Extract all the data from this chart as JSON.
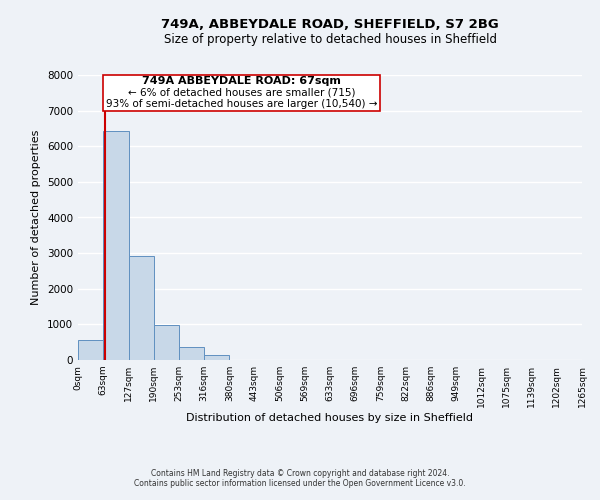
{
  "title": "749A, ABBEYDALE ROAD, SHEFFIELD, S7 2BG",
  "subtitle": "Size of property relative to detached houses in Sheffield",
  "xlabel": "Distribution of detached houses by size in Sheffield",
  "ylabel": "Number of detached properties",
  "bar_values": [
    550,
    6430,
    2920,
    970,
    370,
    150,
    0,
    0,
    0,
    0,
    0,
    0,
    0,
    0,
    0,
    0,
    0,
    0,
    0,
    0
  ],
  "bin_edges": [
    0,
    63,
    127,
    190,
    253,
    316,
    380,
    443,
    506,
    569,
    633,
    696,
    759,
    822,
    886,
    949,
    1012,
    1075,
    1139,
    1202,
    1265
  ],
  "tick_labels": [
    "0sqm",
    "63sqm",
    "127sqm",
    "190sqm",
    "253sqm",
    "316sqm",
    "380sqm",
    "443sqm",
    "506sqm",
    "569sqm",
    "633sqm",
    "696sqm",
    "759sqm",
    "822sqm",
    "886sqm",
    "949sqm",
    "1012sqm",
    "1075sqm",
    "1139sqm",
    "1202sqm",
    "1265sqm"
  ],
  "ylim": [
    0,
    8000
  ],
  "yticks": [
    0,
    1000,
    2000,
    3000,
    4000,
    5000,
    6000,
    7000,
    8000
  ],
  "bar_color": "#c8d8e8",
  "bar_edge_color": "#6090c0",
  "property_line_x": 67,
  "property_line_color": "#cc0000",
  "annotation_line1": "749A ABBEYDALE ROAD: 67sqm",
  "annotation_line2": "← 6% of detached houses are smaller (715)",
  "annotation_line3": "93% of semi-detached houses are larger (10,540) →",
  "footer_line1": "Contains HM Land Registry data © Crown copyright and database right 2024.",
  "footer_line2": "Contains public sector information licensed under the Open Government Licence v3.0.",
  "background_color": "#eef2f7",
  "plot_background_color": "#eef2f7",
  "grid_color": "#ffffff"
}
